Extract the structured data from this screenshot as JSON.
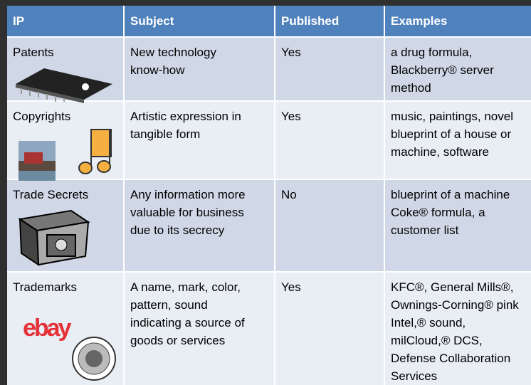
{
  "table": {
    "header": [
      "IP",
      "Subject",
      "Published",
      "Examples"
    ],
    "rows": [
      {
        "cells": [
          [
            "Patents"
          ],
          [
            "New technology",
            "know-how"
          ],
          [
            "Yes"
          ],
          [
            "a drug formula,",
            "Blackberry® server",
            "method"
          ]
        ]
      },
      {
        "cells": [
          [
            "Copyrights"
          ],
          [
            "Artistic expression in",
            "tangible form"
          ],
          [
            "Yes"
          ],
          [
            "music, paintings, novel",
            "blueprint of a house or",
            "machine, software"
          ]
        ]
      },
      {
        "cells": [
          [
            "Trade Secrets"
          ],
          [
            "Any information more",
            "valuable for business",
            "due to its secrecy"
          ],
          [
            "No"
          ],
          [
            "blueprint of a machine",
            "Coke® formula, a",
            "customer list"
          ]
        ]
      },
      {
        "cells": [
          [
            "Trademarks"
          ],
          [
            "A name, mark, color,",
            "pattern, sound",
            "indicating a source of",
            "goods or services"
          ],
          [
            "Yes"
          ],
          [
            "KFC®, General Mills®,",
            "Ownings-Corning® pink",
            "Intel,® sound,",
            "milCloud,® DCS,",
            "Defense Collaboration",
            "Services"
          ]
        ],
        "logo": "ebay"
      }
    ]
  }
}
